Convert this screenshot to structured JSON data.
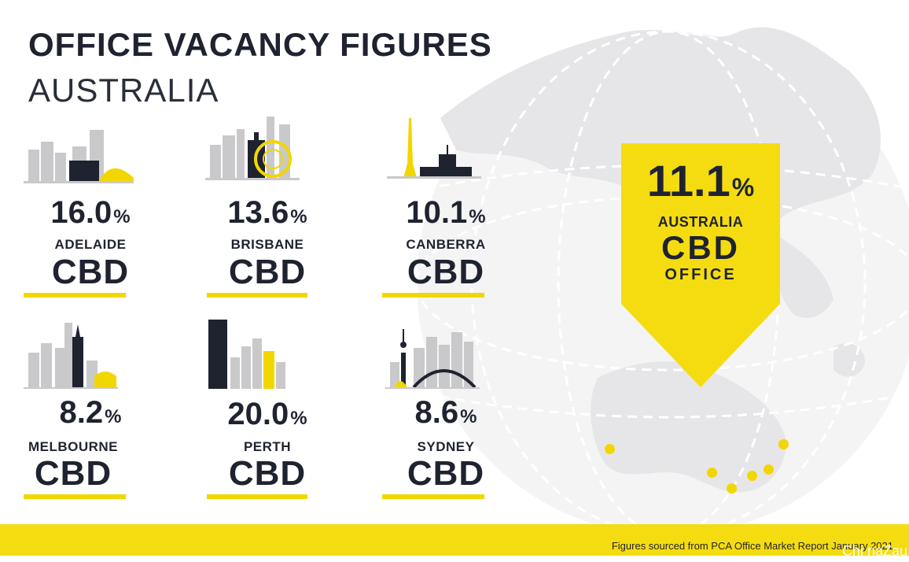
{
  "header": {
    "title": "OFFICE VACANCY FIGURES",
    "subtitle": "AUSTRALIA"
  },
  "cities": [
    {
      "value": "16.0",
      "unit": "%",
      "name": "ADELAIDE",
      "type": "CBD"
    },
    {
      "value": "13.6",
      "unit": "%",
      "name": "BRISBANE",
      "type": "CBD"
    },
    {
      "value": "10.1",
      "unit": "%",
      "name": "CANBERRA",
      "type": "CBD"
    },
    {
      "value": "8.2",
      "unit": "%",
      "name": "MELBOURNE",
      "type": "CBD"
    },
    {
      "value": "20.0",
      "unit": "%",
      "name": "PERTH",
      "type": "CBD"
    },
    {
      "value": "8.6",
      "unit": "%",
      "name": "SYDNEY",
      "type": "CBD"
    }
  ],
  "national": {
    "value": "11.1",
    "unit": "%",
    "line1": "AUSTRALIA",
    "line2": "CBD",
    "line3": "OFFICE"
  },
  "footer": {
    "source": "Figures sourced from PCA Office Market Report January 2021"
  },
  "watermark": "Chi naZau",
  "colors": {
    "accent_yellow": "#f2d600",
    "dark_navy": "#1f2330",
    "skyline_grey": "#c9c9cb",
    "globe_grey": "#ededee"
  }
}
